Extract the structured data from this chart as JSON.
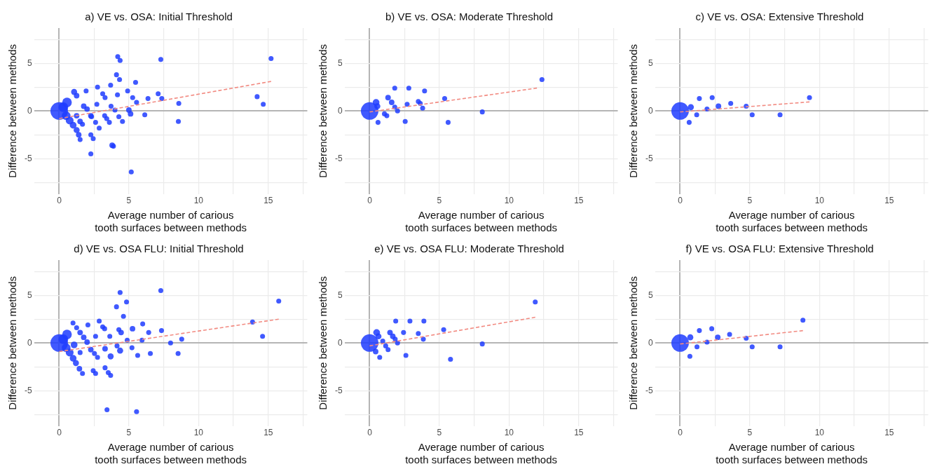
{
  "chart_data": [
    {
      "type": "bubble",
      "title": "a) VE vs. OSA: Initial Threshold",
      "xlabel": "Average number of carious\ntooth surfaces between methods",
      "ylabel": "Difference between methods",
      "xlim": [
        -1.8,
        17.8
      ],
      "ylim": [
        -8.7,
        8.7
      ],
      "xticks": [
        0,
        {
          "value": 2.5,
          "label": null
        },
        5,
        {
          "value": 7.5,
          "label": null
        },
        10,
        {
          "value": 12.5,
          "label": null
        },
        15,
        {
          "value": 17.5,
          "label": null
        }
      ],
      "yticks": [
        {
          "value": -7.5,
          "label": null
        },
        -5,
        {
          "value": -2.5,
          "label": null
        },
        0,
        {
          "value": 2.5,
          "label": null
        },
        5,
        {
          "value": 7.5,
          "label": null
        }
      ],
      "grid": true,
      "series": [
        {
          "type": "bubble",
          "color": "#1f3cff",
          "x": [
            0,
            0.3,
            0.56,
            0.5,
            0.75,
            1.0,
            1.25,
            1.4,
            1.5,
            1.07,
            1.25,
            1.25,
            1.5,
            1.67,
            1.93,
            1.76,
            2.0,
            2.27,
            2.32,
            2.61,
            2.87,
            2.27,
            2.44,
            2.27,
            2.75,
            2.7,
            3.12,
            3.29,
            3.26,
            3.41,
            3.6,
            3.69,
            3.72,
            3.8,
            3.89,
            4.11,
            4.18,
            4.0,
            4.2,
            4.37,
            4.33,
            4.28,
            4.54,
            4.91,
            5.0,
            5.12,
            5.17,
            5.27,
            5.48,
            5.55,
            6.14,
            6.37,
            7.1,
            7.29,
            7.36,
            8.55,
            8.58,
            14.2,
            14.64,
            15.2
          ],
          "values": [
            0,
            0.4,
            0.9,
            -0.5,
            -1.0,
            -1.5,
            -2.0,
            -2.5,
            -3.0,
            2.0,
            1.6,
            -0.5,
            -1.1,
            -1.4,
            2.1,
            0.5,
            0.2,
            -0.5,
            -0.6,
            -1.2,
            -1.8,
            -2.5,
            -2.9,
            -4.5,
            2.5,
            0.7,
            1.8,
            1.4,
            -0.5,
            -0.8,
            -1.2,
            2.7,
            0.5,
            -3.6,
            -3.7,
            3.8,
            1.7,
            0.1,
            5.7,
            5.3,
            3.3,
            -0.6,
            -1.1,
            2.1,
            0.1,
            -0.3,
            -6.4,
            1.4,
            3.0,
            0.9,
            -0.4,
            1.3,
            1.8,
            5.4,
            1.3,
            -1.1,
            0.8,
            1.5,
            0.7,
            5.5
          ],
          "sizes": [
            1,
            0.3,
            0.3,
            0.25,
            0.2,
            0.15,
            0.12,
            0.1,
            0.08,
            0.12,
            0.1,
            0.1,
            0.1,
            0.08,
            0.08,
            0.1,
            0.1,
            0.1,
            0.08,
            0.08,
            0.08,
            0.08,
            0.08,
            0.08,
            0.08,
            0.08,
            0.08,
            0.08,
            0.08,
            0.08,
            0.08,
            0.08,
            0.08,
            0.1,
            0.08,
            0.08,
            0.08,
            0.08,
            0.08,
            0.08,
            0.08,
            0.08,
            0.08,
            0.08,
            0.1,
            0.1,
            0.08,
            0.08,
            0.08,
            0.08,
            0.08,
            0.08,
            0.08,
            0.08,
            0.08,
            0.08,
            0.08,
            0.08,
            0.08,
            0.08
          ]
        },
        {
          "type": "line",
          "color": "#f28b82",
          "line_style": "dashed",
          "x": [
            0,
            15.2
          ],
          "values": [
            -0.8,
            3.1
          ]
        }
      ]
    },
    {
      "type": "bubble",
      "title": "b) VE vs. OSA: Moderate Threshold",
      "xlabel": "Average number of carious\ntooth surfaces between methods",
      "ylabel": "Difference between methods",
      "xlim": [
        -1.8,
        17.8
      ],
      "ylim": [
        -8.7,
        8.7
      ],
      "xticks": [
        0,
        {
          "value": 2.5,
          "label": null
        },
        5,
        {
          "value": 7.5,
          "label": null
        },
        10,
        {
          "value": 12.5,
          "label": null
        },
        15,
        {
          "value": 17.5,
          "label": null
        }
      ],
      "yticks": [
        {
          "value": -7.5,
          "label": null
        },
        -5,
        {
          "value": -2.5,
          "label": null
        },
        0,
        {
          "value": 2.5,
          "label": null
        },
        5,
        {
          "value": 7.5,
          "label": null
        }
      ],
      "grid": true,
      "series": [
        {
          "type": "bubble",
          "color": "#1f3cff",
          "x": [
            0,
            0.46,
            0.55,
            0.6,
            1.06,
            1.23,
            1.32,
            1.58,
            1.8,
            2.0,
            1.8,
            2.81,
            3.94,
            2.69,
            2.55,
            3.49,
            3.63,
            3.8,
            5.38,
            5.63,
            8.08,
            12.36
          ],
          "values": [
            0,
            0.9,
            0.5,
            -1.2,
            -0.3,
            -0.5,
            1.4,
            0.9,
            0.4,
            0.0,
            2.4,
            2.4,
            2.1,
            0.7,
            -1.1,
            1.0,
            0.8,
            0.3,
            1.3,
            -1.2,
            -0.1,
            3.3
          ],
          "sizes": [
            1,
            0.15,
            0.12,
            0.08,
            0.08,
            0.08,
            0.1,
            0.1,
            0.08,
            0.08,
            0.08,
            0.08,
            0.08,
            0.08,
            0.08,
            0.08,
            0.08,
            0.08,
            0.08,
            0.08,
            0.08,
            0.08
          ]
        },
        {
          "type": "line",
          "color": "#f28b82",
          "line_style": "dashed",
          "x": [
            0,
            12.0
          ],
          "values": [
            -0.1,
            2.4
          ]
        }
      ]
    },
    {
      "type": "bubble",
      "title": "c) VE vs. OSA: Extensive Threshold",
      "xlabel": "Average number of carious\ntooth surfaces between methods",
      "ylabel": "Difference between methods",
      "xlim": [
        -1.8,
        17.8
      ],
      "ylim": [
        -8.7,
        8.7
      ],
      "xticks": [
        0,
        {
          "value": 2.5,
          "label": null
        },
        5,
        {
          "value": 7.5,
          "label": null
        },
        10,
        {
          "value": 12.5,
          "label": null
        },
        15,
        {
          "value": 17.5,
          "label": null
        }
      ],
      "yticks": [
        {
          "value": -7.5,
          "label": null
        },
        -5,
        {
          "value": -2.5,
          "label": null
        },
        0,
        {
          "value": 2.5,
          "label": null
        },
        5,
        {
          "value": 7.5,
          "label": null
        }
      ],
      "grid": true,
      "series": [
        {
          "type": "bubble",
          "color": "#1f3cff",
          "x": [
            0,
            0.77,
            0.65,
            1.19,
            1.38,
            1.93,
            2.3,
            2.75,
            3.63,
            4.74,
            5.17,
            7.17,
            9.28
          ],
          "values": [
            0,
            0.4,
            -1.2,
            -0.4,
            1.3,
            0.2,
            1.4,
            0.5,
            0.8,
            0.5,
            -0.4,
            -0.4,
            1.4
          ],
          "sizes": [
            1,
            0.12,
            0.08,
            0.08,
            0.08,
            0.08,
            0.08,
            0.1,
            0.08,
            0.08,
            0.08,
            0.08,
            0.08
          ]
        },
        {
          "type": "line",
          "color": "#f28b82",
          "line_style": "dashed",
          "x": [
            0,
            9.28
          ],
          "values": [
            -0.1,
            0.95
          ]
        }
      ]
    },
    {
      "type": "bubble",
      "title": "d) VE vs. OSA FLU: Initial Threshold",
      "xlabel": "Average number of carious\ntooth surfaces between methods",
      "ylabel": "Difference between methods",
      "xlim": [
        -1.8,
        17.8
      ],
      "ylim": [
        -8.7,
        8.7
      ],
      "xticks": [
        0,
        {
          "value": 2.5,
          "label": null
        },
        5,
        {
          "value": 7.5,
          "label": null
        },
        10,
        {
          "value": 12.5,
          "label": null
        },
        15,
        {
          "value": 17.5,
          "label": null
        }
      ],
      "yticks": [
        {
          "value": -7.5,
          "label": null
        },
        -5,
        {
          "value": -2.5,
          "label": null
        },
        0,
        {
          "value": 2.5,
          "label": null
        },
        5,
        {
          "value": 7.5,
          "label": null
        }
      ],
      "grid": true,
      "series": [
        {
          "type": "bubble",
          "color": "#1f3cff",
          "x": [
            0,
            0.3,
            0.56,
            0.5,
            0.75,
            1.0,
            1.2,
            1.45,
            1.67,
            0.99,
            1.25,
            1.07,
            1.5,
            1.5,
            1.76,
            2.0,
            2.27,
            2.53,
            2.75,
            2.06,
            2.87,
            2.61,
            2.44,
            2.61,
            3.12,
            3.26,
            3.29,
            3.69,
            3.29,
            3.52,
            3.69,
            3.43,
            3.63,
            4.11,
            4.37,
            4.83,
            4.61,
            4.28,
            4.44,
            4.15,
            4.37,
            4.88,
            5.26,
            5.22,
            5.63,
            5.55,
            5.94,
            5.99,
            6.42,
            6.54,
            7.29,
            7.34,
            7.99,
            8.53,
            8.79,
            13.87,
            14.59,
            15.75
          ],
          "values": [
            0,
            0.4,
            0.9,
            -0.5,
            -1.0,
            -1.6,
            -2.1,
            -2.7,
            -3.2,
            2.1,
            1.6,
            -0.2,
            -1.0,
            1.1,
            0.6,
            0.1,
            -0.7,
            -1.1,
            -1.5,
            1.9,
            2.3,
            0.7,
            -2.9,
            -3.2,
            1.7,
            1.5,
            -0.6,
            -1.4,
            -2.6,
            -3.1,
            -3.4,
            -7.0,
            0.7,
            3.8,
            5.3,
            4.3,
            2.8,
            1.4,
            1.1,
            -0.3,
            -0.8,
            0.3,
            1.5,
            -0.5,
            -1.3,
            -7.2,
            0.3,
            2.0,
            1.1,
            -1.1,
            5.5,
            1.3,
            0.0,
            -1.1,
            0.4,
            2.2,
            0.7,
            4.4
          ],
          "sizes": [
            1,
            0.3,
            0.3,
            0.25,
            0.2,
            0.15,
            0.12,
            0.1,
            0.08,
            0.08,
            0.08,
            0.15,
            0.08,
            0.1,
            0.1,
            0.1,
            0.1,
            0.08,
            0.08,
            0.08,
            0.08,
            0.08,
            0.08,
            0.08,
            0.08,
            0.08,
            0.1,
            0.12,
            0.08,
            0.08,
            0.08,
            0.08,
            0.08,
            0.08,
            0.08,
            0.08,
            0.08,
            0.08,
            0.1,
            0.08,
            0.12,
            0.08,
            0.1,
            0.08,
            0.08,
            0.08,
            0.08,
            0.08,
            0.08,
            0.08,
            0.08,
            0.08,
            0.08,
            0.08,
            0.08,
            0.08,
            0.08,
            0.08
          ]
        },
        {
          "type": "line",
          "color": "#f28b82",
          "line_style": "dashed",
          "x": [
            0,
            15.75
          ],
          "values": [
            -0.9,
            2.5
          ]
        }
      ]
    },
    {
      "type": "bubble",
      "title": "e) VE vs. OSA FLU: Moderate Threshold",
      "xlabel": "Average number of carious\ntooth surfaces between methods",
      "ylabel": "Difference between methods",
      "xlim": [
        -1.8,
        17.8
      ],
      "ylim": [
        -8.7,
        8.7
      ],
      "xticks": [
        0,
        {
          "value": 2.5,
          "label": null
        },
        5,
        {
          "value": 7.5,
          "label": null
        },
        10,
        {
          "value": 12.5,
          "label": null
        },
        15,
        {
          "value": 17.5,
          "label": null
        }
      ],
      "yticks": [
        {
          "value": -7.5,
          "label": null
        },
        -5,
        {
          "value": -2.5,
          "label": null
        },
        0,
        {
          "value": 2.5,
          "label": null
        },
        5,
        {
          "value": 7.5,
          "label": null
        }
      ],
      "grid": true,
      "series": [
        {
          "type": "bubble",
          "color": "#1f3cff",
          "x": [
            0,
            0.5,
            0.63,
            0.43,
            0.72,
            0.94,
            1.15,
            1.32,
            1.46,
            1.66,
            1.83,
            2.0,
            1.87,
            2.89,
            3.89,
            2.43,
            2.6,
            3.49,
            3.85,
            5.31,
            5.8,
            8.08,
            11.88
          ],
          "values": [
            0,
            1.1,
            0.7,
            -0.9,
            -1.5,
            0.2,
            -0.3,
            -0.7,
            1.1,
            0.7,
            0.4,
            0.0,
            2.3,
            2.3,
            2.3,
            1.1,
            -1.3,
            1.0,
            0.4,
            1.4,
            -1.7,
            -0.1,
            4.3
          ],
          "sizes": [
            1,
            0.15,
            0.12,
            0.1,
            0.08,
            0.08,
            0.08,
            0.08,
            0.1,
            0.1,
            0.08,
            0.08,
            0.08,
            0.08,
            0.08,
            0.08,
            0.08,
            0.08,
            0.08,
            0.08,
            0.08,
            0.08,
            0.08
          ]
        },
        {
          "type": "line",
          "color": "#f28b82",
          "line_style": "dashed",
          "x": [
            0,
            11.88
          ],
          "values": [
            -0.3,
            2.7
          ]
        }
      ]
    },
    {
      "type": "bubble",
      "title": "f) VE vs. OSA FLU: Extensive Threshold",
      "xlabel": "Average number of carious\ntooth surfaces between methods",
      "ylabel": "Difference between methods",
      "xlim": [
        -1.8,
        17.8
      ],
      "ylim": [
        -8.7,
        8.7
      ],
      "xticks": [
        0,
        {
          "value": 2.5,
          "label": null
        },
        5,
        {
          "value": 7.5,
          "label": null
        },
        10,
        {
          "value": 12.5,
          "label": null
        },
        15,
        {
          "value": 17.5,
          "label": null
        }
      ],
      "yticks": [
        {
          "value": -7.5,
          "label": null
        },
        -5,
        {
          "value": -2.5,
          "label": null
        },
        0,
        {
          "value": 2.5,
          "label": null
        },
        5,
        {
          "value": 7.5,
          "label": null
        }
      ],
      "grid": true,
      "series": [
        {
          "type": "bubble",
          "color": "#1f3cff",
          "x": [
            0,
            0.73,
            0.7,
            1.21,
            1.38,
            1.93,
            2.27,
            2.7,
            3.55,
            4.74,
            5.17,
            7.17,
            8.81
          ],
          "values": [
            0,
            0.6,
            -1.4,
            -0.4,
            1.3,
            0.1,
            1.5,
            0.6,
            0.9,
            0.5,
            -0.4,
            -0.4,
            2.4
          ],
          "sizes": [
            1,
            0.12,
            0.08,
            0.08,
            0.08,
            0.08,
            0.08,
            0.1,
            0.08,
            0.08,
            0.08,
            0.08,
            0.08
          ]
        },
        {
          "type": "line",
          "color": "#f28b82",
          "line_style": "dashed",
          "x": [
            0,
            8.81
          ],
          "values": [
            -0.1,
            1.3
          ]
        }
      ]
    }
  ]
}
